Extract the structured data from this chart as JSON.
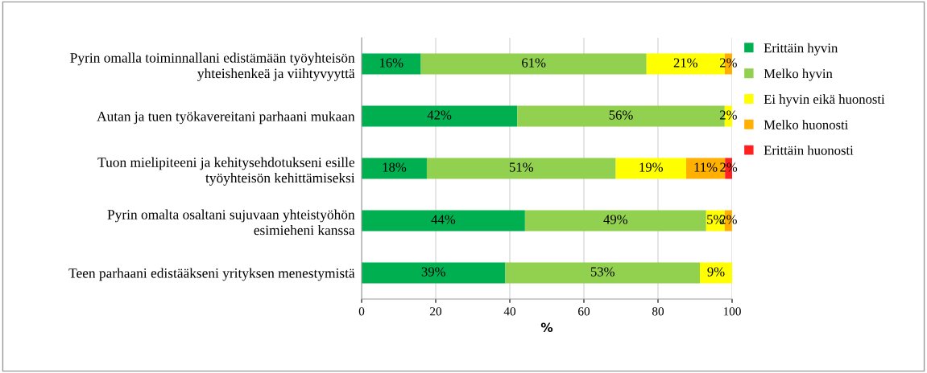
{
  "chart_data": {
    "type": "bar",
    "orientation": "horizontal",
    "stacked": true,
    "xlabel": "%",
    "categories": [
      "Pyrin omalla toiminnallani edistämään työyhteisön\nyhteishenkeä ja viihtyvyyttä",
      "Autan ja tuen työkavereitani parhaani mukaan",
      "Tuon mielipiteeni ja kehitysehdotukseni esille\ntyöyhteisön kehittämiseksi",
      "Pyrin omalta osaltani sujuvaan yhteistyöhön\nesimieheni kanssa",
      "Teen parhaani edistääkseni yrityksen menestymistä"
    ],
    "series": [
      {
        "name": "Erittäin hyvin",
        "color": "#00b050",
        "values": [
          16.0,
          42.0,
          17.6,
          44.1,
          38.8
        ],
        "value_labels": [
          "16%",
          "42%",
          "18%",
          "44%",
          "39%"
        ]
      },
      {
        "name": "Melko hyvin",
        "color": "#92d050",
        "values": [
          60.9,
          56.0,
          51.0,
          48.9,
          52.5
        ],
        "value_labels": [
          "61%",
          "56%",
          "51%",
          "49%",
          "53%"
        ]
      },
      {
        "name": "Ei hyvin eikä huonosti",
        "color": "#ffff00",
        "values": [
          21.1,
          2.0,
          19.0,
          5.0,
          8.7
        ],
        "value_labels": [
          "21%",
          "2%",
          "19%",
          "5%",
          "9%"
        ]
      },
      {
        "name": "Melko huonosti",
        "color": "#ffb000",
        "values": [
          2.0,
          null,
          10.5,
          2.0,
          null
        ],
        "value_labels": [
          "2%",
          null,
          "11%",
          "2%",
          null
        ]
      },
      {
        "name": "Erittäin huonosti",
        "color": "#ff2020",
        "values": [
          null,
          null,
          1.9,
          null,
          null
        ],
        "value_labels": [
          null,
          null,
          "2%",
          null,
          null
        ]
      }
    ],
    "xlim": [
      0,
      100
    ],
    "xticks": [
      0,
      20,
      40,
      60,
      80,
      100
    ],
    "grid": "x",
    "legend": "right"
  }
}
